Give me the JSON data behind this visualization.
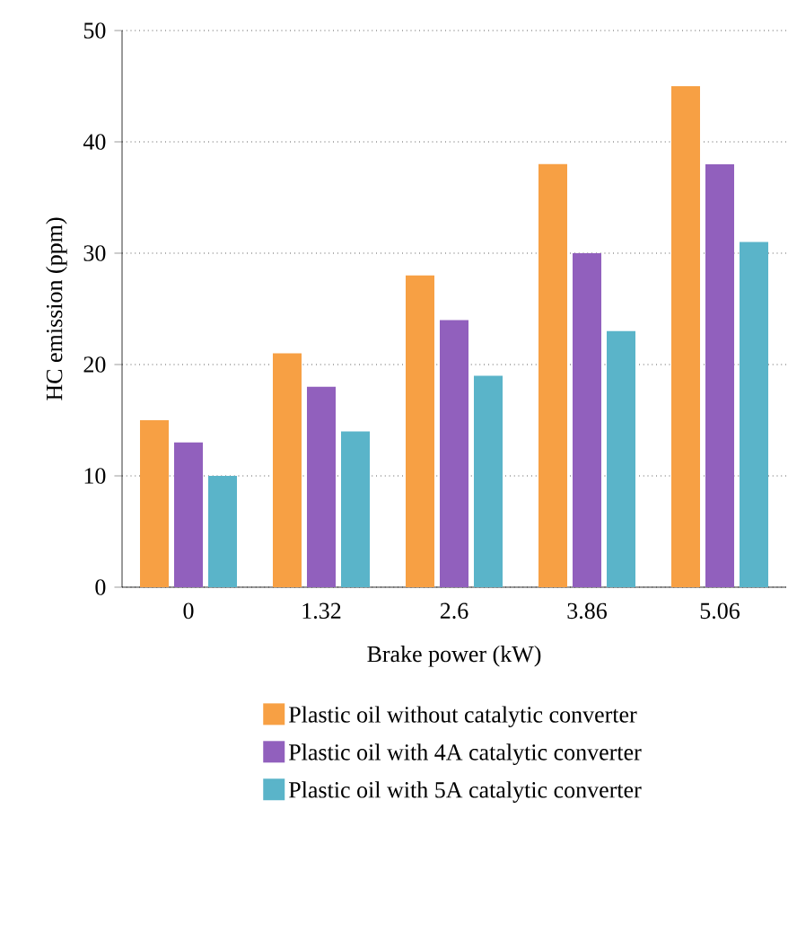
{
  "chart_data": {
    "type": "bar",
    "xlabel": "Brake power (kW)",
    "ylabel": "HC emission (ppm)",
    "categories": [
      "0",
      "1.32",
      "2.6",
      "3.86",
      "5.06"
    ],
    "series": [
      {
        "name": "Plastic oil without catalytic converter",
        "color": "#f7a044",
        "values": [
          15,
          21,
          28,
          38,
          45
        ]
      },
      {
        "name": "Plastic oil with 4A catalytic converter",
        "color": "#9160bd",
        "values": [
          13,
          18,
          24,
          30,
          38
        ]
      },
      {
        "name": "Plastic oil with 5A catalytic converter",
        "color": "#5ab4c9",
        "values": [
          10,
          14,
          19,
          23,
          31
        ]
      }
    ],
    "ylim": [
      0,
      50
    ],
    "yticks": [
      0,
      10,
      20,
      30,
      40,
      50
    ],
    "grid": "y",
    "legend": "bottom"
  }
}
